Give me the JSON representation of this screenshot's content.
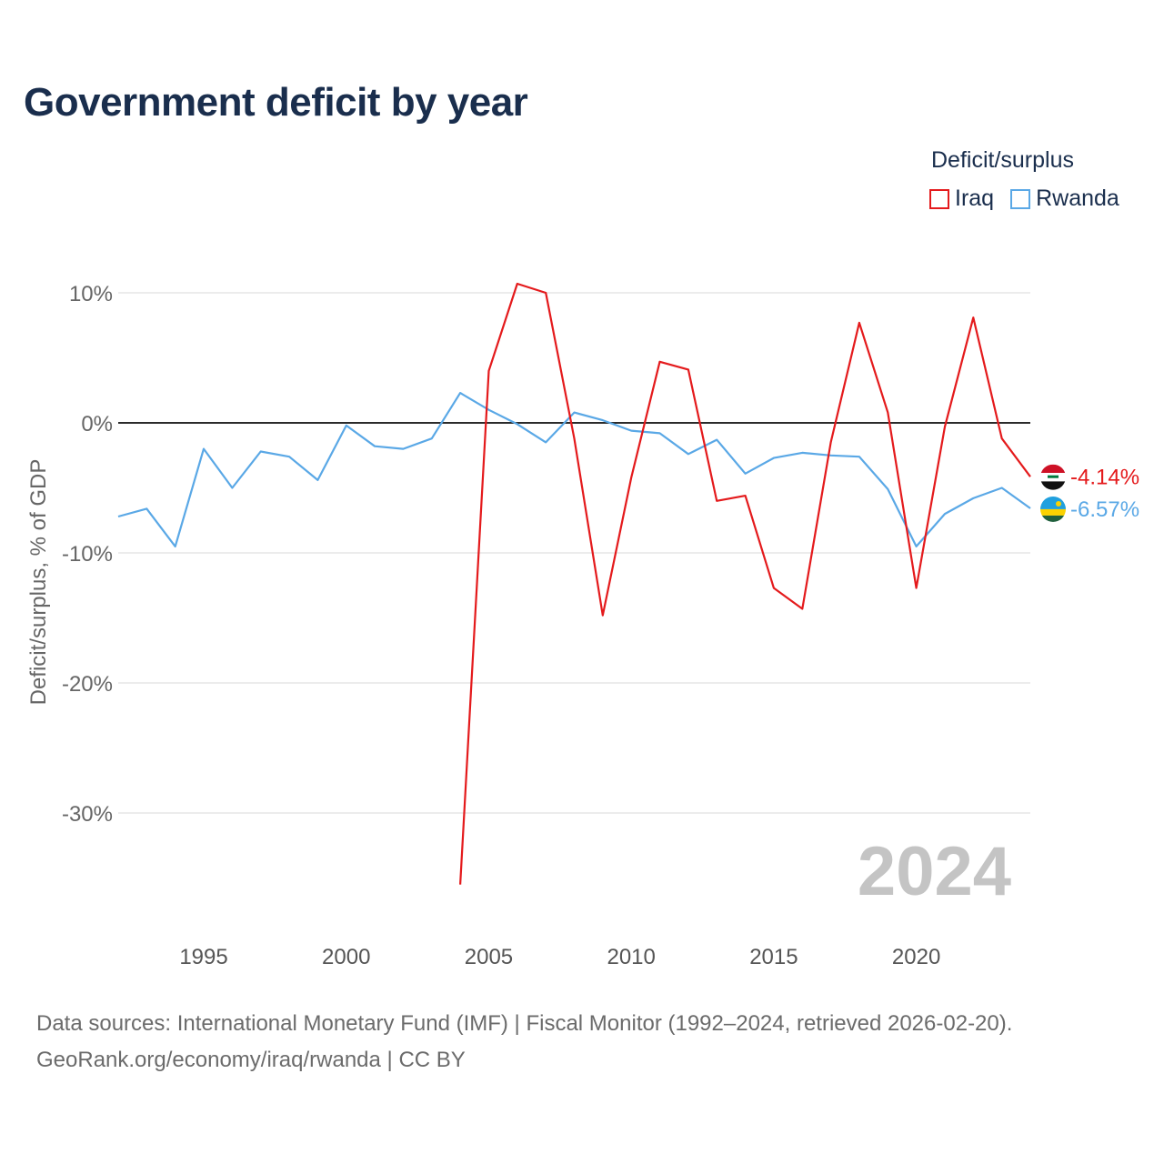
{
  "title": "Government deficit by year",
  "legend": {
    "title": "Deficit/surplus",
    "items": [
      {
        "label": "Iraq",
        "color": "#e41a1c"
      },
      {
        "label": "Rwanda",
        "color": "#5aa8e6"
      }
    ]
  },
  "footer": {
    "line1": "Data sources: International Monetary Fund (IMF) | Fiscal Monitor (1992–2024, retrieved 2026-02-20).",
    "line2": "GeoRank.org/economy/iraq/rwanda | CC BY"
  },
  "chart_data": {
    "type": "line",
    "title": "Government deficit by year",
    "xlabel": "",
    "ylabel": "Deficit/surplus, % of GDP",
    "xlim": [
      1992,
      2024
    ],
    "ylim": [
      -37,
      12.5
    ],
    "x_ticks": [
      1995,
      2000,
      2005,
      2010,
      2015,
      2020
    ],
    "y_ticks": [
      10,
      0,
      -10,
      -20,
      -30
    ],
    "y_tick_labels": [
      "10%",
      "0%",
      "-10%",
      "-20%",
      "-30%"
    ],
    "zero_line": true,
    "watermark": "2024",
    "series": [
      {
        "name": "Iraq",
        "color": "#e41a1c",
        "x": [
          2004,
          2005,
          2006,
          2007,
          2008,
          2009,
          2010,
          2011,
          2012,
          2013,
          2014,
          2015,
          2016,
          2017,
          2018,
          2019,
          2020,
          2021,
          2022,
          2023,
          2024
        ],
        "values": [
          -35.5,
          4.0,
          10.7,
          10.0,
          -1.2,
          -14.8,
          -4.2,
          4.7,
          4.1,
          -6.0,
          -5.6,
          -12.7,
          -14.3,
          -1.5,
          7.7,
          0.8,
          -12.7,
          -0.3,
          8.1,
          -1.2,
          -4.14
        ],
        "end_label": "-4.14%"
      },
      {
        "name": "Rwanda",
        "color": "#5aa8e6",
        "x": [
          1992,
          1993,
          1994,
          1995,
          1996,
          1997,
          1998,
          1999,
          2000,
          2001,
          2002,
          2003,
          2004,
          2005,
          2006,
          2007,
          2008,
          2009,
          2010,
          2011,
          2012,
          2013,
          2014,
          2015,
          2016,
          2017,
          2018,
          2019,
          2020,
          2021,
          2022,
          2023,
          2024
        ],
        "values": [
          -7.2,
          -6.6,
          -9.5,
          -2.0,
          -5.0,
          -2.2,
          -2.6,
          -4.4,
          -0.2,
          -1.8,
          -2.0,
          -1.2,
          2.3,
          1.0,
          -0.1,
          -1.5,
          0.8,
          0.2,
          -0.6,
          -0.8,
          -2.4,
          -1.3,
          -3.9,
          -2.7,
          -2.3,
          -2.5,
          -2.6,
          -5.1,
          -9.5,
          -7.0,
          -5.8,
          -5.0,
          -6.57
        ],
        "end_label": "-6.57%"
      }
    ]
  }
}
